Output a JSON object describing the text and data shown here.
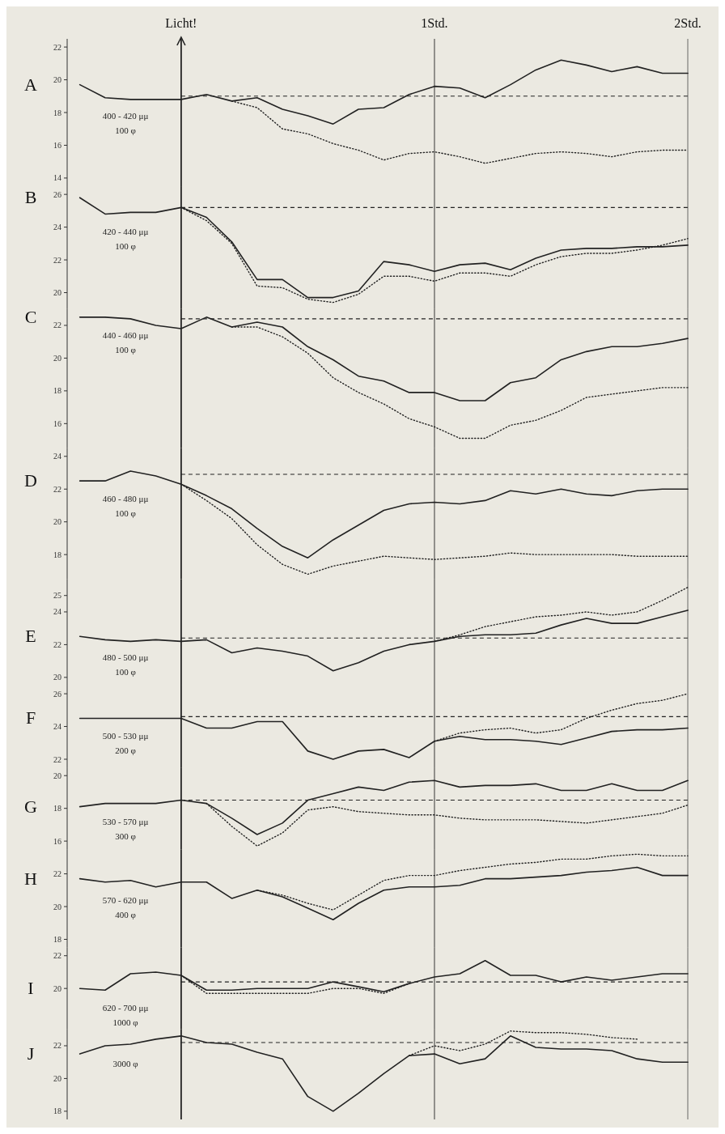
{
  "chart_data": [
    {
      "type": "line",
      "title": "A",
      "annotations": [
        "400 - 420 μμ",
        "100 φ"
      ],
      "x": [
        -0.4,
        -0.3,
        -0.2,
        -0.1,
        0,
        0.1,
        0.2,
        0.3,
        0.4,
        0.5,
        0.6,
        0.7,
        0.8,
        0.9,
        1,
        1.1,
        1.2,
        1.3,
        1.4,
        1.5,
        1.6,
        1.7,
        1.8,
        1.9,
        2
      ],
      "xlim": [
        -0.45,
        2
      ],
      "xticks": [
        {
          "value": 0,
          "label": "Licht!"
        },
        {
          "value": 1,
          "label": "1Std."
        },
        {
          "value": 2,
          "label": "2Std."
        }
      ],
      "ylim": [
        13.5,
        22.5
      ],
      "yticks": [
        22,
        20,
        18,
        16,
        14
      ],
      "ref_lines": [
        {
          "axis": "x",
          "value": 0
        },
        {
          "axis": "x",
          "value": 1
        },
        {
          "axis": "y",
          "value": 19.0,
          "line_style": "dashed"
        }
      ],
      "series": [
        {
          "color": "#222222",
          "line_style": "solid",
          "values": [
            19.7,
            18.9,
            18.8,
            18.8,
            18.8,
            19.1,
            18.7,
            18.9,
            18.2,
            17.8,
            17.3,
            18.2,
            18.3,
            19.1,
            19.6,
            19.5,
            18.9,
            19.7,
            20.6,
            21.2,
            20.9,
            20.5,
            20.8,
            20.4,
            20.4
          ]
        },
        {
          "color": "#222222",
          "line_style": "dotted",
          "values": [
            null,
            null,
            null,
            null,
            null,
            null,
            18.7,
            18.3,
            17.0,
            16.7,
            16.1,
            15.7,
            15.1,
            15.5,
            15.6,
            15.3,
            14.9,
            15.2,
            15.5,
            15.6,
            15.5,
            15.3,
            15.6,
            15.7,
            15.7
          ]
        }
      ]
    },
    {
      "type": "line",
      "title": "B",
      "annotations": [
        "420 - 440 μμ",
        "100 φ"
      ],
      "x": [
        -0.4,
        -0.3,
        -0.2,
        -0.1,
        0,
        0.1,
        0.2,
        0.3,
        0.4,
        0.5,
        0.6,
        0.7,
        0.8,
        0.9,
        1,
        1.1,
        1.2,
        1.3,
        1.4,
        1.5,
        1.6,
        1.7,
        1.8,
        1.9,
        2
      ],
      "xlim": [
        -0.45,
        2
      ],
      "tick_labels": "y",
      "ylim": [
        19,
        26.5
      ],
      "yticks": [
        26,
        24,
        22,
        20
      ],
      "ref_lines": [
        {
          "axis": "x",
          "value": 0
        },
        {
          "axis": "x",
          "value": 1
        },
        {
          "axis": "y",
          "value": 25.2,
          "line_style": "dashed"
        }
      ],
      "series": [
        {
          "color": "#222222",
          "line_style": "solid",
          "values": [
            25.8,
            24.8,
            24.9,
            24.9,
            25.2,
            24.6,
            23.1,
            20.8,
            20.8,
            19.7,
            19.7,
            20.1,
            21.9,
            21.7,
            21.3,
            21.7,
            21.8,
            21.4,
            22.1,
            22.6,
            22.7,
            22.7,
            22.8,
            22.8,
            22.9
          ]
        },
        {
          "color": "#222222",
          "line_style": "dotted",
          "values": [
            null,
            null,
            null,
            null,
            25.2,
            24.4,
            23.0,
            20.4,
            20.3,
            19.6,
            19.4,
            19.9,
            21.0,
            21.0,
            20.7,
            21.2,
            21.2,
            21.0,
            21.7,
            22.2,
            22.4,
            22.4,
            22.6,
            22.9,
            23.3
          ]
        }
      ]
    },
    {
      "type": "line",
      "title": "C",
      "annotations": [
        "440 - 460 μμ",
        "100 φ"
      ],
      "x": [
        -0.4,
        -0.3,
        -0.2,
        -0.1,
        0,
        0.1,
        0.2,
        0.3,
        0.4,
        0.5,
        0.6,
        0.7,
        0.8,
        0.9,
        1,
        1.1,
        1.2,
        1.3,
        1.4,
        1.5,
        1.6,
        1.7,
        1.8,
        1.9,
        2
      ],
      "xlim": [
        -0.45,
        2
      ],
      "tick_labels": "y",
      "ylim": [
        14.5,
        23
      ],
      "yticks": [
        22,
        20,
        18,
        16
      ],
      "ref_lines": [
        {
          "axis": "x",
          "value": 0
        },
        {
          "axis": "x",
          "value": 1
        },
        {
          "axis": "y",
          "value": 22.4,
          "line_style": "dashed"
        }
      ],
      "series": [
        {
          "color": "#222222",
          "line_style": "solid",
          "values": [
            22.5,
            22.5,
            22.4,
            22.0,
            21.8,
            22.5,
            21.9,
            22.2,
            21.9,
            20.7,
            19.9,
            18.9,
            18.6,
            17.9,
            17.9,
            17.4,
            17.4,
            18.5,
            18.8,
            19.9,
            20.4,
            20.7,
            20.7,
            20.9,
            21.2
          ]
        },
        {
          "color": "#222222",
          "line_style": "dotted",
          "values": [
            null,
            null,
            null,
            null,
            null,
            null,
            21.9,
            21.9,
            21.3,
            20.3,
            18.8,
            17.9,
            17.2,
            16.3,
            15.8,
            15.1,
            15.1,
            15.9,
            16.2,
            16.8,
            17.6,
            17.8,
            18.0,
            18.2,
            18.2
          ]
        }
      ]
    },
    {
      "type": "line",
      "title": "D",
      "annotations": [
        "460 - 480 μμ",
        "100 φ"
      ],
      "x": [
        -0.4,
        -0.3,
        -0.2,
        -0.1,
        0,
        0.1,
        0.2,
        0.3,
        0.4,
        0.5,
        0.6,
        0.7,
        0.8,
        0.9,
        1,
        1.1,
        1.2,
        1.3,
        1.4,
        1.5,
        1.6,
        1.7,
        1.8,
        1.9,
        2
      ],
      "xlim": [
        -0.45,
        2
      ],
      "tick_labels": "y",
      "ylim": [
        16.5,
        24.5
      ],
      "yticks": [
        24,
        22,
        20,
        18
      ],
      "ref_lines": [
        {
          "axis": "x",
          "value": 0
        },
        {
          "axis": "x",
          "value": 1
        },
        {
          "axis": "y",
          "value": 22.9,
          "line_style": "dashed"
        }
      ],
      "series": [
        {
          "color": "#222222",
          "line_style": "solid",
          "values": [
            22.5,
            22.5,
            23.1,
            22.8,
            22.3,
            21.6,
            20.8,
            19.6,
            18.5,
            17.8,
            18.9,
            19.8,
            20.7,
            21.1,
            21.2,
            21.1,
            21.3,
            21.9,
            21.7,
            22.0,
            21.7,
            21.6,
            21.9,
            22.0,
            22.0
          ]
        },
        {
          "color": "#222222",
          "line_style": "dotted",
          "values": [
            null,
            null,
            null,
            null,
            22.3,
            21.3,
            20.2,
            18.6,
            17.4,
            16.8,
            17.3,
            17.6,
            17.9,
            17.8,
            17.7,
            17.8,
            17.9,
            18.1,
            18.0,
            18.0,
            18.0,
            18.0,
            17.9,
            17.9,
            17.9
          ]
        }
      ]
    },
    {
      "type": "line",
      "title": "E",
      "annotations": [
        "480 - 500 μμ",
        "100 φ"
      ],
      "x": [
        -0.4,
        -0.3,
        -0.2,
        -0.1,
        0,
        0.1,
        0.2,
        0.3,
        0.4,
        0.5,
        0.6,
        0.7,
        0.8,
        0.9,
        1,
        1.1,
        1.2,
        1.3,
        1.4,
        1.5,
        1.6,
        1.7,
        1.8,
        1.9,
        2
      ],
      "xlim": [
        -0.45,
        2
      ],
      "tick_labels": "y",
      "ylim": [
        19.5,
        26
      ],
      "yticks": [
        25,
        24,
        22,
        20
      ],
      "ref_lines": [
        {
          "axis": "x",
          "value": 0
        },
        {
          "axis": "x",
          "value": 1
        },
        {
          "axis": "y",
          "value": 22.4,
          "line_style": "dashed"
        }
      ],
      "series": [
        {
          "color": "#222222",
          "line_style": "solid",
          "values": [
            22.5,
            22.3,
            22.2,
            22.3,
            22.2,
            22.3,
            21.5,
            21.8,
            21.6,
            21.3,
            20.4,
            20.9,
            21.6,
            22.0,
            22.2,
            22.5,
            22.6,
            22.6,
            22.7,
            23.2,
            23.6,
            23.3,
            23.3,
            23.7,
            24.1
          ]
        },
        {
          "color": "#222222",
          "line_style": "dotted",
          "values": [
            null,
            null,
            null,
            null,
            null,
            null,
            null,
            null,
            null,
            null,
            null,
            null,
            null,
            null,
            22.2,
            22.6,
            23.1,
            23.4,
            23.7,
            23.8,
            24.0,
            23.8,
            24.0,
            24.7,
            25.5
          ]
        }
      ]
    },
    {
      "type": "line",
      "title": "F",
      "annotations": [
        "500 - 530 μμ",
        "200 φ"
      ],
      "x": [
        -0.4,
        -0.3,
        -0.2,
        -0.1,
        0,
        0.1,
        0.2,
        0.3,
        0.4,
        0.5,
        0.6,
        0.7,
        0.8,
        0.9,
        1,
        1.1,
        1.2,
        1.3,
        1.4,
        1.5,
        1.6,
        1.7,
        1.8,
        1.9,
        2
      ],
      "xlim": [
        -0.45,
        2
      ],
      "tick_labels": "y",
      "ylim": [
        21.5,
        26.5
      ],
      "yticks": [
        26,
        24,
        22
      ],
      "ref_lines": [
        {
          "axis": "x",
          "value": 0
        },
        {
          "axis": "x",
          "value": 1
        },
        {
          "axis": "y",
          "value": 24.6,
          "line_style": "dashed"
        }
      ],
      "series": [
        {
          "color": "#222222",
          "line_style": "solid",
          "values": [
            24.5,
            24.5,
            24.5,
            24.5,
            24.5,
            23.9,
            23.9,
            24.3,
            24.3,
            22.5,
            22.0,
            22.5,
            22.6,
            22.1,
            23.1,
            23.4,
            23.2,
            23.2,
            23.1,
            22.9,
            23.3,
            23.7,
            23.8,
            23.8,
            23.9
          ]
        },
        {
          "color": "#222222",
          "line_style": "dotted",
          "values": [
            null,
            null,
            null,
            null,
            null,
            null,
            null,
            null,
            null,
            null,
            null,
            null,
            null,
            null,
            23.1,
            23.6,
            23.8,
            23.9,
            23.6,
            23.8,
            24.5,
            25.0,
            25.4,
            25.6,
            26.0
          ]
        }
      ]
    },
    {
      "type": "line",
      "title": "G",
      "annotations": [
        "530 - 570 μμ",
        "300 φ"
      ],
      "x": [
        -0.4,
        -0.3,
        -0.2,
        -0.1,
        0,
        0.1,
        0.2,
        0.3,
        0.4,
        0.5,
        0.6,
        0.7,
        0.8,
        0.9,
        1,
        1.1,
        1.2,
        1.3,
        1.4,
        1.5,
        1.6,
        1.7,
        1.8,
        1.9,
        2
      ],
      "xlim": [
        -0.45,
        2
      ],
      "tick_labels": "y",
      "ylim": [
        15.5,
        20.5
      ],
      "yticks": [
        20,
        18,
        16
      ],
      "ref_lines": [
        {
          "axis": "x",
          "value": 0
        },
        {
          "axis": "x",
          "value": 1
        },
        {
          "axis": "y",
          "value": 18.5,
          "line_style": "dashed"
        }
      ],
      "series": [
        {
          "color": "#222222",
          "line_style": "solid",
          "values": [
            18.1,
            18.3,
            18.3,
            18.3,
            18.5,
            18.3,
            17.4,
            16.4,
            17.1,
            18.5,
            18.9,
            19.3,
            19.1,
            19.6,
            19.7,
            19.3,
            19.4,
            19.4,
            19.5,
            19.1,
            19.1,
            19.5,
            19.1,
            19.1,
            19.7
          ]
        },
        {
          "color": "#222222",
          "line_style": "dotted",
          "values": [
            null,
            null,
            null,
            null,
            null,
            18.3,
            16.9,
            15.7,
            16.5,
            17.9,
            18.1,
            17.8,
            17.7,
            17.6,
            17.6,
            17.4,
            17.3,
            17.3,
            17.3,
            17.2,
            17.1,
            17.3,
            17.5,
            17.7,
            18.2
          ]
        }
      ]
    },
    {
      "type": "line",
      "title": "H",
      "annotations": [
        "570 - 620 μμ",
        "400 φ"
      ],
      "x": [
        -0.4,
        -0.3,
        -0.2,
        -0.1,
        0,
        0.1,
        0.2,
        0.3,
        0.4,
        0.5,
        0.6,
        0.7,
        0.8,
        0.9,
        1,
        1.1,
        1.2,
        1.3,
        1.4,
        1.5,
        1.6,
        1.7,
        1.8,
        1.9,
        2
      ],
      "xlim": [
        -0.45,
        2
      ],
      "tick_labels": "y",
      "ylim": [
        17.5,
        23.5
      ],
      "yticks": [
        22,
        20,
        18
      ],
      "ref_lines": [
        {
          "axis": "x",
          "value": 0
        },
        {
          "axis": "x",
          "value": 1
        }
      ],
      "series": [
        {
          "color": "#222222",
          "line_style": "solid",
          "values": [
            21.7,
            21.5,
            21.6,
            21.2,
            21.5,
            21.5,
            20.5,
            21.0,
            20.6,
            19.9,
            19.2,
            20.2,
            21.0,
            21.2,
            21.2,
            21.3,
            21.7,
            21.7,
            21.8,
            21.9,
            22.1,
            22.2,
            22.4,
            21.9,
            21.9
          ]
        },
        {
          "color": "#222222",
          "line_style": "dotted",
          "values": [
            null,
            null,
            null,
            null,
            null,
            null,
            null,
            21.0,
            20.7,
            20.2,
            19.8,
            20.7,
            21.6,
            21.9,
            21.9,
            22.2,
            22.4,
            22.6,
            22.7,
            22.9,
            22.9,
            23.1,
            23.2,
            23.1,
            23.1
          ]
        }
      ]
    },
    {
      "type": "line",
      "title": "I",
      "annotations": [
        "620 - 700 μμ",
        "1000 φ"
      ],
      "x": [
        -0.4,
        -0.3,
        -0.2,
        -0.1,
        0,
        0.1,
        0.2,
        0.3,
        0.4,
        0.5,
        0.6,
        0.7,
        0.8,
        0.9,
        1,
        1.1,
        1.2,
        1.3,
        1.4,
        1.5,
        1.6,
        1.7,
        1.8,
        1.9,
        2
      ],
      "xlim": [
        -0.45,
        2
      ],
      "tick_labels": "y",
      "ylim": [
        17.5,
        22.5
      ],
      "yticks": [
        22,
        20
      ],
      "ref_lines": [
        {
          "axis": "x",
          "value": 0
        },
        {
          "axis": "x",
          "value": 1
        },
        {
          "axis": "y",
          "value": 20.4,
          "line_style": "dashed"
        }
      ],
      "series": [
        {
          "color": "#222222",
          "line_style": "solid",
          "values": [
            20.0,
            19.9,
            20.9,
            21.0,
            20.8,
            19.9,
            19.9,
            20.0,
            20.0,
            20.0,
            20.4,
            20.1,
            19.8,
            20.3,
            20.7,
            20.9,
            21.7,
            20.8,
            20.8,
            20.4,
            20.7,
            20.5,
            20.7,
            20.9,
            20.9
          ]
        },
        {
          "color": "#222222",
          "line_style": "dotted",
          "values": [
            null,
            null,
            null,
            null,
            20.8,
            19.7,
            19.7,
            19.7,
            19.7,
            19.7,
            20.0,
            20.0,
            19.7,
            20.3,
            null,
            null,
            null,
            null,
            null,
            null,
            null,
            null,
            null,
            null,
            null
          ]
        }
      ]
    },
    {
      "type": "line",
      "title": "J",
      "annotations": [
        "3000 φ"
      ],
      "x": [
        -0.4,
        -0.3,
        -0.2,
        -0.1,
        0,
        0.1,
        0.2,
        0.3,
        0.4,
        0.5,
        0.6,
        0.7,
        0.8,
        0.9,
        1,
        1.1,
        1.2,
        1.3,
        1.4,
        1.5,
        1.6,
        1.7,
        1.8,
        1.9,
        2
      ],
      "xlim": [
        -0.45,
        2
      ],
      "tick_labels": "y",
      "ylim": [
        17.5,
        23
      ],
      "yticks": [
        22,
        20,
        18
      ],
      "ref_lines": [
        {
          "axis": "x",
          "value": 0
        },
        {
          "axis": "x",
          "value": 1
        },
        {
          "axis": "y",
          "value": 22.2,
          "line_style": "dashed"
        }
      ],
      "series": [
        {
          "color": "#222222",
          "line_style": "solid",
          "values": [
            21.5,
            22.0,
            22.1,
            22.4,
            22.6,
            22.2,
            22.1,
            21.6,
            21.2,
            18.9,
            18.0,
            19.1,
            20.3,
            21.4,
            21.5,
            20.9,
            21.2,
            22.6,
            21.9,
            21.8,
            21.8,
            21.7,
            21.2,
            21.0,
            21.0
          ]
        },
        {
          "color": "#222222",
          "line_style": "dotted",
          "values": [
            null,
            null,
            null,
            null,
            null,
            null,
            null,
            null,
            null,
            null,
            null,
            null,
            null,
            21.4,
            22.0,
            21.7,
            22.1,
            22.9,
            22.8,
            22.8,
            22.7,
            22.5,
            22.4,
            null,
            null
          ]
        }
      ]
    }
  ]
}
